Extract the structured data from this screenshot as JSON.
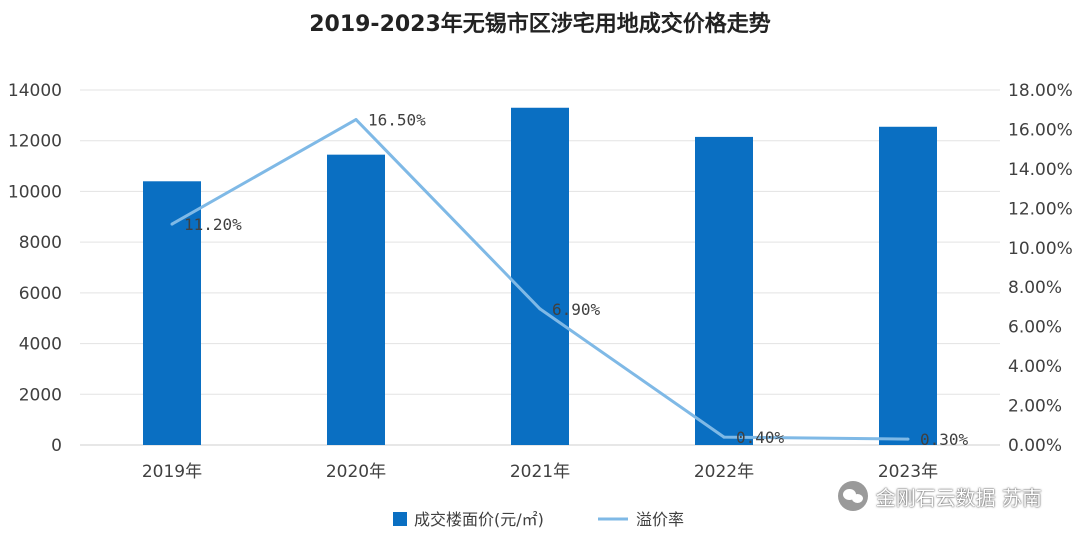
{
  "chart_data": {
    "type": "bar+line",
    "title": "2019-2023年无锡市区涉宅用地成交价格走势",
    "categories": [
      "2019年",
      "2020年",
      "2021年",
      "2022年",
      "2023年"
    ],
    "series": [
      {
        "name": "成交楼面价(元/㎡)",
        "type": "bar",
        "axis": "left",
        "values": [
          10400,
          11450,
          13300,
          12150,
          12550
        ],
        "color": "#0a6fc2"
      },
      {
        "name": "溢价率",
        "type": "line",
        "axis": "right",
        "values": [
          11.2,
          16.5,
          6.9,
          0.4,
          0.3
        ],
        "color": "#7fb9e6",
        "labels": [
          "11.20%",
          "16.50%",
          "6.90%",
          "0.40%",
          "0.30%"
        ]
      }
    ],
    "y_left": {
      "min": 0,
      "max": 14000,
      "ticks": [
        "0",
        "2000",
        "4000",
        "6000",
        "8000",
        "10000",
        "12000",
        "14000"
      ]
    },
    "y_right": {
      "min": 0,
      "max": 18,
      "ticks": [
        "0.00%",
        "2.00%",
        "4.00%",
        "6.00%",
        "8.00%",
        "10.00%",
        "12.00%",
        "14.00%",
        "16.00%",
        "18.00%"
      ]
    },
    "legend_position": "bottom",
    "grid": true
  },
  "watermark": {
    "text": "金刚石云数据 苏南",
    "icon": "wechat-icon"
  }
}
